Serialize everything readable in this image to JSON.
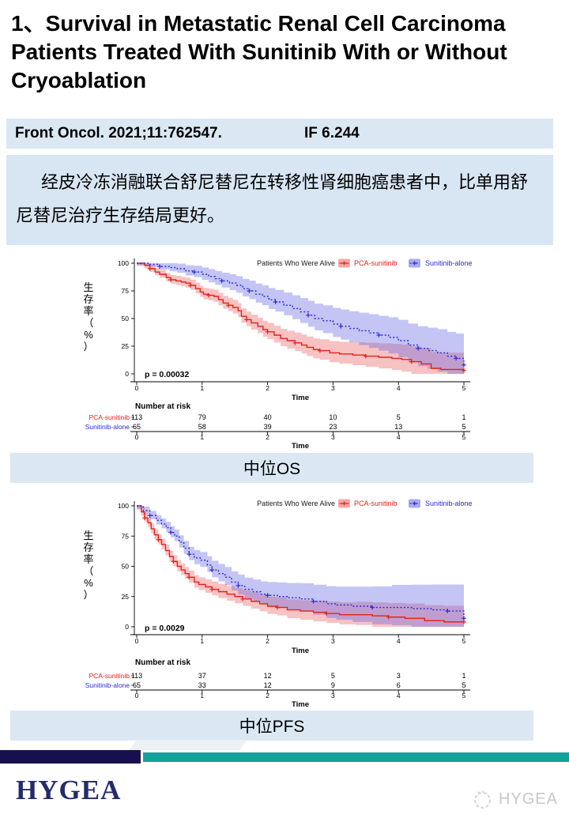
{
  "title": "1、Survival in Metastatic Renal Cell Carcinoma Patients Treated With Sunitinib With or Without Cryoablation",
  "citation": {
    "journal": "Front Oncol. 2021;11:762547.",
    "impact_factor": "IF 6.244"
  },
  "summary": "经皮冷冻消融联合舒尼替尼在转移性肾细胞癌患者中，比单用舒尼替尼治疗生存结局更好。",
  "section_labels": {
    "os": "中位OS",
    "pfs": "中位PFS"
  },
  "footer": {
    "logo": "HYGEA",
    "watermark": "HYGEA"
  },
  "colors": {
    "light_blue_bar": "#dbe8f4",
    "summary_bg": "#d8e5f2",
    "navy_bar": "#16114e",
    "teal_bar": "#12a29a",
    "logo_navy": "#252c6a",
    "series_red": "#e4211c",
    "series_blue": "#2b2bd5"
  },
  "chart_data": [
    {
      "type": "line",
      "subtype": "kaplan-meier-step",
      "name": "overall-survival",
      "legend_title": "Patients Who Were Alive",
      "ylabel": "生存率（%）",
      "xlabel": "Time",
      "xlim": [
        0,
        5
      ],
      "ylim": [
        0,
        100
      ],
      "xticks": [
        0,
        1,
        2,
        3,
        4,
        5
      ],
      "yticks": [
        0,
        25,
        50,
        75,
        100
      ],
      "p_value": "p = 0.00032",
      "series": [
        {
          "name": "PCA-sunitinib",
          "color": "#e4211c",
          "band_color": "rgba(233,80,80,0.35)",
          "swatch": "#f6a8a8",
          "dash": "none",
          "points": [
            [
              0,
              100
            ],
            [
              0.12,
              98
            ],
            [
              0.2,
              95
            ],
            [
              0.28,
              92
            ],
            [
              0.35,
              90
            ],
            [
              0.45,
              87
            ],
            [
              0.52,
              85
            ],
            [
              0.6,
              84
            ],
            [
              0.68,
              83
            ],
            [
              0.75,
              82
            ],
            [
              0.82,
              80
            ],
            [
              0.9,
              77
            ],
            [
              0.97,
              74
            ],
            [
              1.02,
              72
            ],
            [
              1.1,
              71
            ],
            [
              1.18,
              70
            ],
            [
              1.25,
              67
            ],
            [
              1.32,
              64
            ],
            [
              1.4,
              62
            ],
            [
              1.47,
              60
            ],
            [
              1.55,
              57
            ],
            [
              1.6,
              52
            ],
            [
              1.68,
              49
            ],
            [
              1.75,
              46
            ],
            [
              1.85,
              43
            ],
            [
              1.93,
              40
            ],
            [
              2.0,
              38
            ],
            [
              2.1,
              35
            ],
            [
              2.2,
              32
            ],
            [
              2.3,
              30
            ],
            [
              2.42,
              28
            ],
            [
              2.52,
              26
            ],
            [
              2.6,
              24
            ],
            [
              2.7,
              22
            ],
            [
              2.8,
              21
            ],
            [
              2.95,
              19
            ],
            [
              3.1,
              18
            ],
            [
              3.3,
              17
            ],
            [
              3.5,
              16
            ],
            [
              3.7,
              15
            ],
            [
              3.9,
              14
            ],
            [
              4.05,
              13
            ],
            [
              4.2,
              11
            ],
            [
              4.35,
              9
            ],
            [
              4.5,
              5
            ],
            [
              4.65,
              4
            ],
            [
              5,
              3
            ]
          ],
          "band_halfwidth": [
            3,
            2.6
          ]
        },
        {
          "name": "Sunitinib-alone",
          "color": "#2b2bd5",
          "band_color": "rgba(100,100,230,0.38)",
          "swatch": "#ababef",
          "dash": "2,2.4",
          "points": [
            [
              0,
              100
            ],
            [
              0.2,
              99
            ],
            [
              0.35,
              97
            ],
            [
              0.5,
              96
            ],
            [
              0.62,
              95
            ],
            [
              0.75,
              93
            ],
            [
              0.88,
              92
            ],
            [
              1.0,
              90
            ],
            [
              1.1,
              88
            ],
            [
              1.2,
              86
            ],
            [
              1.3,
              84
            ],
            [
              1.42,
              82
            ],
            [
              1.52,
              80
            ],
            [
              1.62,
              77
            ],
            [
              1.72,
              75
            ],
            [
              1.82,
              72
            ],
            [
              1.92,
              70
            ],
            [
              2.02,
              67
            ],
            [
              2.12,
              65
            ],
            [
              2.25,
              62
            ],
            [
              2.38,
              59
            ],
            [
              2.5,
              56
            ],
            [
              2.62,
              53
            ],
            [
              2.72,
              50
            ],
            [
              2.85,
              48
            ],
            [
              3.0,
              45
            ],
            [
              3.12,
              43
            ],
            [
              3.25,
              41
            ],
            [
              3.4,
              39
            ],
            [
              3.55,
              37
            ],
            [
              3.7,
              35
            ],
            [
              3.85,
              33
            ],
            [
              4.0,
              30
            ],
            [
              4.15,
              26
            ],
            [
              4.3,
              23
            ],
            [
              4.45,
              21
            ],
            [
              4.6,
              19
            ],
            [
              4.75,
              16
            ],
            [
              4.88,
              14
            ],
            [
              5,
              8
            ]
          ],
          "band_halfwidth": [
            2,
            4.2
          ]
        }
      ],
      "risk_table": {
        "title": "Number at risk",
        "xlabel": "Time",
        "rows": [
          {
            "name": "PCA-sunitinib",
            "color": "#e4211c",
            "values": [
              "113",
              "79",
              "40",
              "10",
              "5",
              "1"
            ]
          },
          {
            "name": "Sunitinib-alone",
            "color": "#2b2bd5",
            "values": [
              "65",
              "58",
              "39",
              "23",
              "13",
              "5"
            ]
          }
        ]
      }
    },
    {
      "type": "line",
      "subtype": "kaplan-meier-step",
      "name": "progression-free-survival",
      "legend_title": "Patients Who Were Alive",
      "ylabel": "生存率（%）",
      "xlabel": "Time",
      "xlim": [
        0,
        5
      ],
      "ylim": [
        0,
        100
      ],
      "xticks": [
        0,
        1,
        2,
        3,
        4,
        5
      ],
      "yticks": [
        0,
        25,
        50,
        75,
        100
      ],
      "p_value": "p = 0.0029",
      "series": [
        {
          "name": "PCA-sunitinib",
          "color": "#e4211c",
          "band_color": "rgba(233,80,80,0.35)",
          "swatch": "#f6a8a8",
          "dash": "none",
          "points": [
            [
              0,
              100
            ],
            [
              0.07,
              95
            ],
            [
              0.12,
              90
            ],
            [
              0.17,
              86
            ],
            [
              0.22,
              81
            ],
            [
              0.27,
              76
            ],
            [
              0.33,
              72
            ],
            [
              0.38,
              68
            ],
            [
              0.44,
              63
            ],
            [
              0.5,
              58
            ],
            [
              0.56,
              54
            ],
            [
              0.62,
              50
            ],
            [
              0.68,
              47
            ],
            [
              0.74,
              44
            ],
            [
              0.8,
              41
            ],
            [
              0.88,
              37
            ],
            [
              0.95,
              35
            ],
            [
              1.05,
              33
            ],
            [
              1.15,
              31
            ],
            [
              1.25,
              29
            ],
            [
              1.38,
              27
            ],
            [
              1.5,
              25
            ],
            [
              1.62,
              23
            ],
            [
              1.75,
              21
            ],
            [
              1.88,
              19
            ],
            [
              2.0,
              17
            ],
            [
              2.15,
              16
            ],
            [
              2.3,
              14
            ],
            [
              2.5,
              13
            ],
            [
              2.7,
              12
            ],
            [
              2.9,
              11
            ],
            [
              3.1,
              10
            ],
            [
              3.35,
              10
            ],
            [
              3.6,
              9
            ],
            [
              3.85,
              8
            ],
            [
              4.1,
              7
            ],
            [
              4.4,
              5
            ],
            [
              4.7,
              4
            ],
            [
              5,
              4
            ]
          ],
          "band_halfwidth": [
            4,
            2
          ]
        },
        {
          "name": "Sunitinib-alone",
          "color": "#2b2bd5",
          "band_color": "rgba(100,100,230,0.38)",
          "swatch": "#ababef",
          "dash": "2,2.4",
          "points": [
            [
              0,
              100
            ],
            [
              0.1,
              96
            ],
            [
              0.2,
              92
            ],
            [
              0.3,
              88
            ],
            [
              0.38,
              85
            ],
            [
              0.45,
              82
            ],
            [
              0.52,
              78
            ],
            [
              0.58,
              75
            ],
            [
              0.65,
              70
            ],
            [
              0.72,
              65
            ],
            [
              0.8,
              60
            ],
            [
              0.88,
              57
            ],
            [
              0.97,
              55
            ],
            [
              1.08,
              51
            ],
            [
              1.15,
              47
            ],
            [
              1.25,
              44
            ],
            [
              1.35,
              41
            ],
            [
              1.45,
              37
            ],
            [
              1.55,
              34
            ],
            [
              1.65,
              31
            ],
            [
              1.78,
              29
            ],
            [
              1.9,
              27
            ],
            [
              2.0,
              26
            ],
            [
              2.15,
              25
            ],
            [
              2.3,
              24
            ],
            [
              2.5,
              23
            ],
            [
              2.7,
              21
            ],
            [
              2.9,
              19
            ],
            [
              3.05,
              18
            ],
            [
              3.3,
              17
            ],
            [
              3.6,
              16
            ],
            [
              3.9,
              16
            ],
            [
              4.2,
              15
            ],
            [
              4.5,
              14
            ],
            [
              4.75,
              13
            ],
            [
              5,
              7
            ]
          ],
          "band_halfwidth": [
            3,
            4
          ]
        }
      ],
      "risk_table": {
        "title": "Number at risk",
        "xlabel": "Time",
        "rows": [
          {
            "name": "PCA-sunitinib",
            "color": "#e4211c",
            "values": [
              "113",
              "37",
              "12",
              "5",
              "3",
              "1"
            ]
          },
          {
            "name": "Sunitinib-alone",
            "color": "#2b2bd5",
            "values": [
              "65",
              "33",
              "12",
              "9",
              "6",
              "5"
            ]
          }
        ]
      }
    }
  ]
}
